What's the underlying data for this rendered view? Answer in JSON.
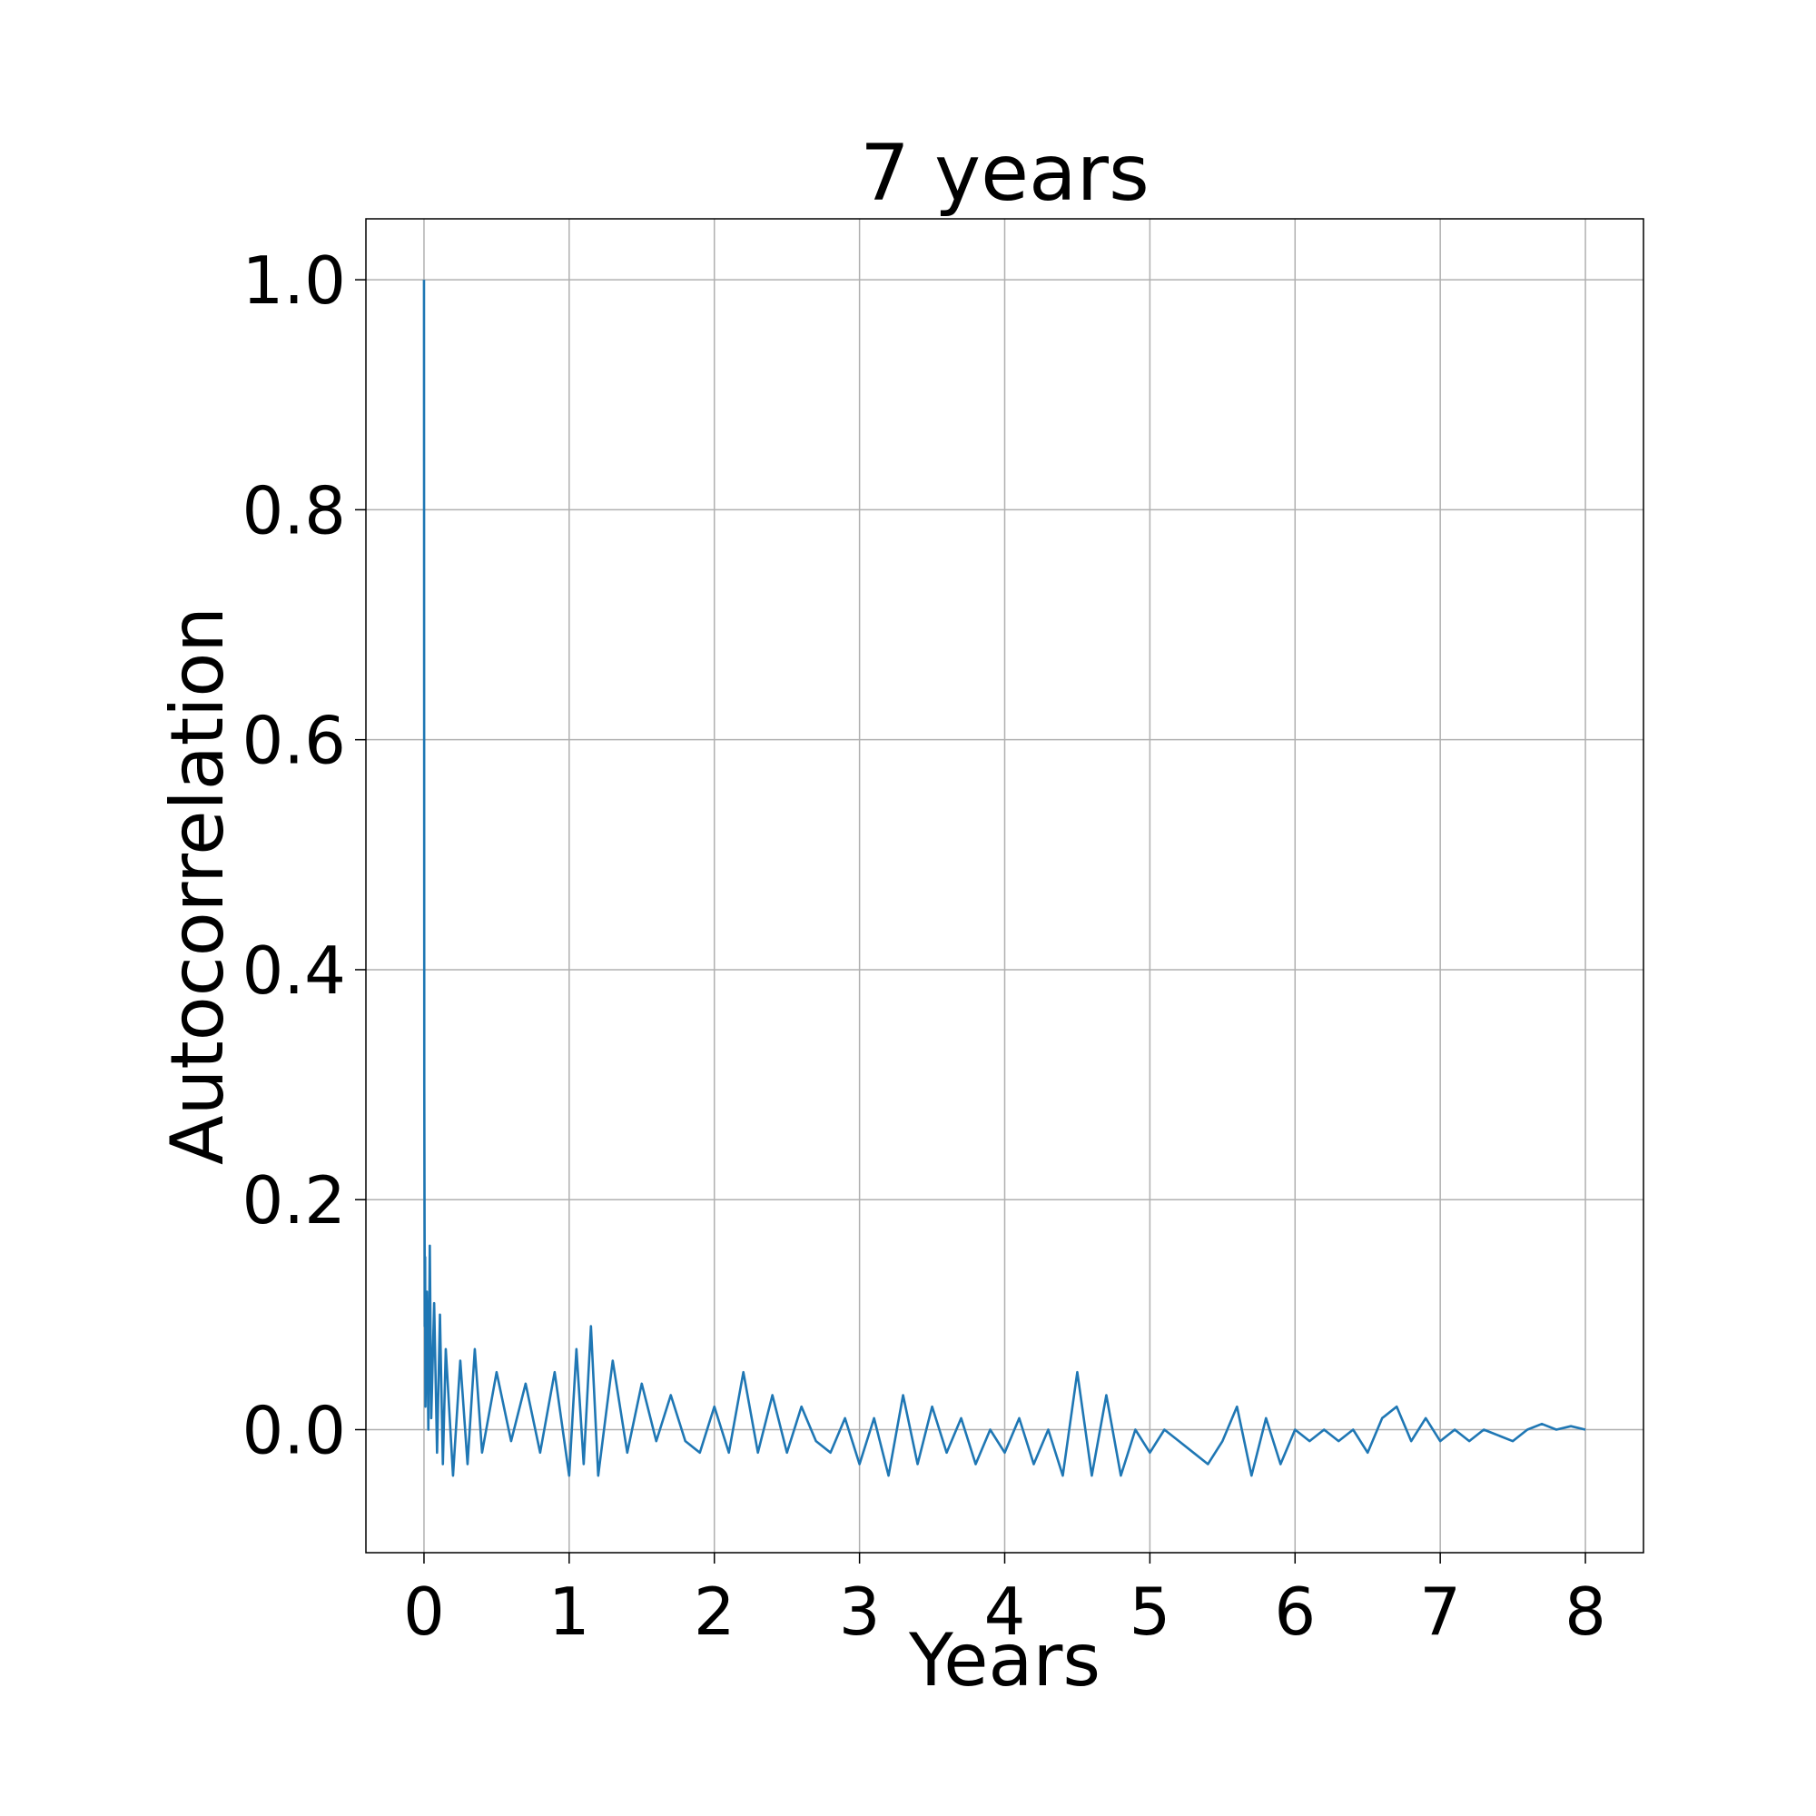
{
  "chart_data": {
    "type": "line",
    "title": "7 years",
    "xlabel": "Years",
    "ylabel": "Autocorrelation",
    "xlim": [
      -0.4,
      8.4
    ],
    "ylim": [
      -0.107,
      1.053
    ],
    "xticks": [
      0,
      1,
      2,
      3,
      4,
      5,
      6,
      7,
      8
    ],
    "xtick_labels": [
      "0",
      "1",
      "2",
      "3",
      "4",
      "5",
      "6",
      "7",
      "8"
    ],
    "yticks": [
      0.0,
      0.2,
      0.4,
      0.6,
      0.8,
      1.0
    ],
    "ytick_labels": [
      "0.0",
      "0.2",
      "0.4",
      "0.6",
      "0.8",
      "1.0"
    ],
    "grid": true,
    "series": [
      {
        "color": "#1f77b4",
        "points": [
          [
            0.0,
            1.0
          ],
          [
            0.002,
            0.3
          ],
          [
            0.004,
            0.18
          ],
          [
            0.006,
            0.09
          ],
          [
            0.008,
            0.15
          ],
          [
            0.01,
            0.02
          ],
          [
            0.02,
            0.12
          ],
          [
            0.03,
            0.0
          ],
          [
            0.04,
            0.16
          ],
          [
            0.05,
            0.01
          ],
          [
            0.07,
            0.11
          ],
          [
            0.09,
            -0.02
          ],
          [
            0.11,
            0.1
          ],
          [
            0.13,
            -0.03
          ],
          [
            0.15,
            0.07
          ],
          [
            0.2,
            -0.04
          ],
          [
            0.25,
            0.06
          ],
          [
            0.3,
            -0.03
          ],
          [
            0.35,
            0.07
          ],
          [
            0.4,
            -0.02
          ],
          [
            0.5,
            0.05
          ],
          [
            0.6,
            -0.01
          ],
          [
            0.7,
            0.04
          ],
          [
            0.8,
            -0.02
          ],
          [
            0.9,
            0.05
          ],
          [
            1.0,
            -0.04
          ],
          [
            1.05,
            0.07
          ],
          [
            1.1,
            -0.03
          ],
          [
            1.15,
            0.09
          ],
          [
            1.2,
            -0.04
          ],
          [
            1.3,
            0.06
          ],
          [
            1.4,
            -0.02
          ],
          [
            1.5,
            0.04
          ],
          [
            1.6,
            -0.01
          ],
          [
            1.7,
            0.03
          ],
          [
            1.8,
            -0.01
          ],
          [
            1.9,
            -0.02
          ],
          [
            2.0,
            0.02
          ],
          [
            2.1,
            -0.02
          ],
          [
            2.2,
            0.05
          ],
          [
            2.3,
            -0.02
          ],
          [
            2.4,
            0.03
          ],
          [
            2.5,
            -0.02
          ],
          [
            2.6,
            0.02
          ],
          [
            2.7,
            -0.01
          ],
          [
            2.8,
            -0.02
          ],
          [
            2.9,
            0.01
          ],
          [
            3.0,
            -0.03
          ],
          [
            3.1,
            0.01
          ],
          [
            3.2,
            -0.04
          ],
          [
            3.3,
            0.03
          ],
          [
            3.4,
            -0.03
          ],
          [
            3.5,
            0.02
          ],
          [
            3.6,
            -0.02
          ],
          [
            3.7,
            0.01
          ],
          [
            3.8,
            -0.03
          ],
          [
            3.9,
            0.0
          ],
          [
            4.0,
            -0.02
          ],
          [
            4.1,
            0.01
          ],
          [
            4.2,
            -0.03
          ],
          [
            4.3,
            0.0
          ],
          [
            4.4,
            -0.04
          ],
          [
            4.5,
            0.05
          ],
          [
            4.6,
            -0.04
          ],
          [
            4.7,
            0.03
          ],
          [
            4.8,
            -0.04
          ],
          [
            4.9,
            0.0
          ],
          [
            5.0,
            -0.02
          ],
          [
            5.1,
            0.0
          ],
          [
            5.2,
            -0.01
          ],
          [
            5.3,
            -0.02
          ],
          [
            5.4,
            -0.03
          ],
          [
            5.5,
            -0.01
          ],
          [
            5.6,
            0.02
          ],
          [
            5.7,
            -0.04
          ],
          [
            5.8,
            0.01
          ],
          [
            5.9,
            -0.03
          ],
          [
            6.0,
            0.0
          ],
          [
            6.1,
            -0.01
          ],
          [
            6.2,
            0.0
          ],
          [
            6.3,
            -0.01
          ],
          [
            6.4,
            0.0
          ],
          [
            6.5,
            -0.02
          ],
          [
            6.6,
            0.01
          ],
          [
            6.7,
            0.02
          ],
          [
            6.8,
            -0.01
          ],
          [
            6.9,
            0.01
          ],
          [
            7.0,
            -0.01
          ],
          [
            7.1,
            0.0
          ],
          [
            7.2,
            -0.01
          ],
          [
            7.3,
            0.0
          ],
          [
            7.4,
            -0.005
          ],
          [
            7.5,
            -0.01
          ],
          [
            7.6,
            0.0
          ],
          [
            7.7,
            0.005
          ],
          [
            7.8,
            0.0
          ],
          [
            7.9,
            0.003
          ],
          [
            8.0,
            0.0
          ]
        ]
      }
    ]
  }
}
